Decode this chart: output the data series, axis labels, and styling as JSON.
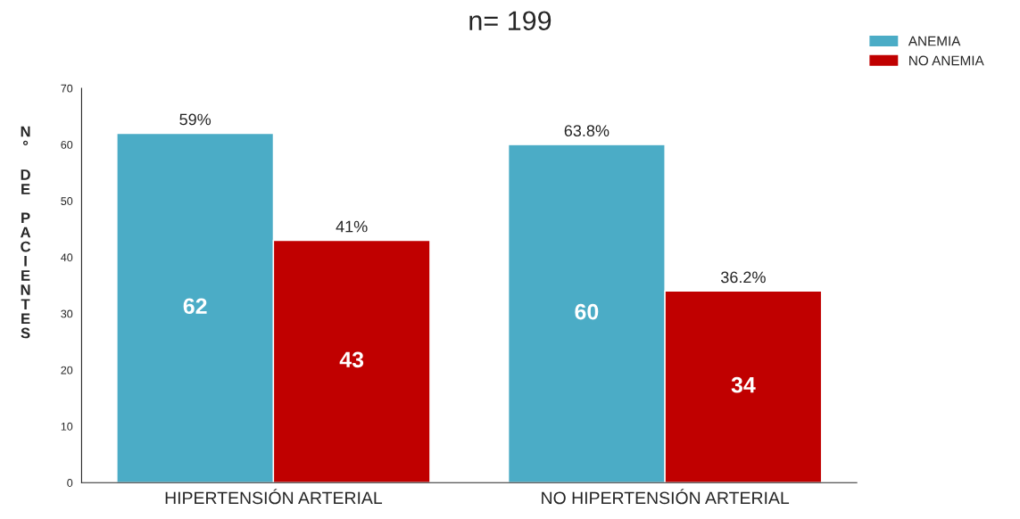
{
  "chart_data": {
    "type": "bar",
    "title": "n= 199",
    "ylabel": "N° DE PACIENTES",
    "categories": [
      "HIPERTENSIÓN ARTERIAL",
      "NO HIPERTENSIÓN ARTERIAL"
    ],
    "series": [
      {
        "name": "ANEMIA",
        "color": "#4bacc6",
        "values": [
          62,
          60
        ]
      },
      {
        "name": "NO ANEMIA",
        "color": "#c00000",
        "values": [
          43,
          34
        ]
      }
    ],
    "annotations": [
      "59%",
      "41%",
      "63.8%",
      "36.2%"
    ],
    "data_labels": true,
    "ylim": [
      0,
      70
    ],
    "yticks": [
      0,
      10,
      20,
      30,
      40,
      50,
      60,
      70
    ],
    "grid": false,
    "legend": "top right"
  }
}
